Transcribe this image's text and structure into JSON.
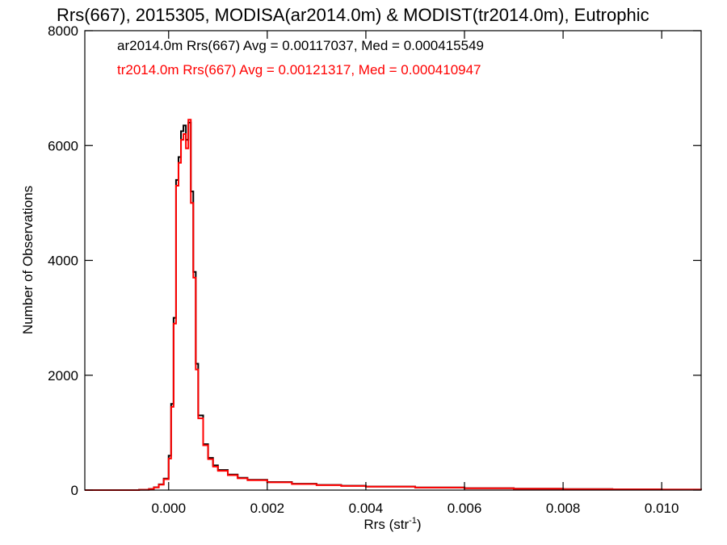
{
  "chart_data": {
    "type": "line",
    "title": "Rrs(667), 2015305, MODISA(ar2014.0m) & MODIST(tr2014.0m), Eutrophic",
    "xlabel_base": "Rrs (str",
    "xlabel_sup": "-1",
    "xlabel_end": ")",
    "ylabel": "Number of Observations",
    "xlim": [
      -0.0017,
      0.0108
    ],
    "ylim": [
      0,
      8000
    ],
    "x_ticks": [
      0.0,
      0.002,
      0.004,
      0.006,
      0.008,
      0.01
    ],
    "x_tick_labels": [
      "0.000",
      "0.002",
      "0.004",
      "0.006",
      "0.008",
      "0.010"
    ],
    "y_ticks": [
      0,
      2000,
      4000,
      6000,
      8000
    ],
    "y_tick_labels": [
      "0",
      "2000",
      "4000",
      "6000",
      "8000"
    ],
    "grid": false,
    "legend_position": "top-left",
    "series": [
      {
        "name": "ar2014.0m",
        "legend_text": "ar2014.0m Rrs(667) Avg = 0.00117037, Med = 0.000415549",
        "color": "#000000",
        "points": [
          [
            -0.0017,
            0
          ],
          [
            -0.0006,
            5
          ],
          [
            -0.0004,
            20
          ],
          [
            -0.0003,
            50
          ],
          [
            -0.0002,
            100
          ],
          [
            -0.0001,
            200
          ],
          [
            0.0,
            600
          ],
          [
            5e-05,
            1500
          ],
          [
            0.0001,
            3000
          ],
          [
            0.00015,
            5400
          ],
          [
            0.0002,
            5800
          ],
          [
            0.00025,
            6250
          ],
          [
            0.0003,
            6350
          ],
          [
            0.00035,
            6100
          ],
          [
            0.0004,
            6400
          ],
          [
            0.00045,
            5200
          ],
          [
            0.0005,
            3800
          ],
          [
            0.00055,
            2200
          ],
          [
            0.0006,
            1300
          ],
          [
            0.0007,
            800
          ],
          [
            0.0008,
            560
          ],
          [
            0.0009,
            430
          ],
          [
            0.001,
            350
          ],
          [
            0.0012,
            270
          ],
          [
            0.0014,
            215
          ],
          [
            0.0016,
            180
          ],
          [
            0.002,
            140
          ],
          [
            0.0025,
            110
          ],
          [
            0.003,
            90
          ],
          [
            0.0035,
            75
          ],
          [
            0.004,
            62
          ],
          [
            0.005,
            45
          ],
          [
            0.006,
            33
          ],
          [
            0.007,
            24
          ],
          [
            0.008,
            17
          ],
          [
            0.009,
            12
          ],
          [
            0.01,
            9
          ],
          [
            0.0108,
            6
          ]
        ]
      },
      {
        "name": "tr2014.0m",
        "legend_text": "tr2014.0m Rrs(667) Avg = 0.00121317, Med = 0.000410947",
        "color": "#ff0000",
        "points": [
          [
            -0.0017,
            0
          ],
          [
            -0.0006,
            5
          ],
          [
            -0.0004,
            18
          ],
          [
            -0.0003,
            45
          ],
          [
            -0.0002,
            95
          ],
          [
            -0.0001,
            190
          ],
          [
            0.0,
            550
          ],
          [
            5e-05,
            1450
          ],
          [
            0.0001,
            2900
          ],
          [
            0.00015,
            5300
          ],
          [
            0.0002,
            5700
          ],
          [
            0.00025,
            6100
          ],
          [
            0.0003,
            6200
          ],
          [
            0.00035,
            5950
          ],
          [
            0.0004,
            6450
          ],
          [
            0.00045,
            5000
          ],
          [
            0.0005,
            3700
          ],
          [
            0.00055,
            2100
          ],
          [
            0.0006,
            1250
          ],
          [
            0.0007,
            780
          ],
          [
            0.0008,
            540
          ],
          [
            0.0009,
            410
          ],
          [
            0.001,
            335
          ],
          [
            0.0012,
            260
          ],
          [
            0.0014,
            205
          ],
          [
            0.0016,
            172
          ],
          [
            0.002,
            135
          ],
          [
            0.0025,
            105
          ],
          [
            0.003,
            86
          ],
          [
            0.0035,
            72
          ],
          [
            0.004,
            60
          ],
          [
            0.005,
            44
          ],
          [
            0.006,
            32
          ],
          [
            0.007,
            23
          ],
          [
            0.008,
            16
          ],
          [
            0.009,
            12
          ],
          [
            0.01,
            9
          ],
          [
            0.0108,
            6
          ]
        ]
      }
    ]
  }
}
